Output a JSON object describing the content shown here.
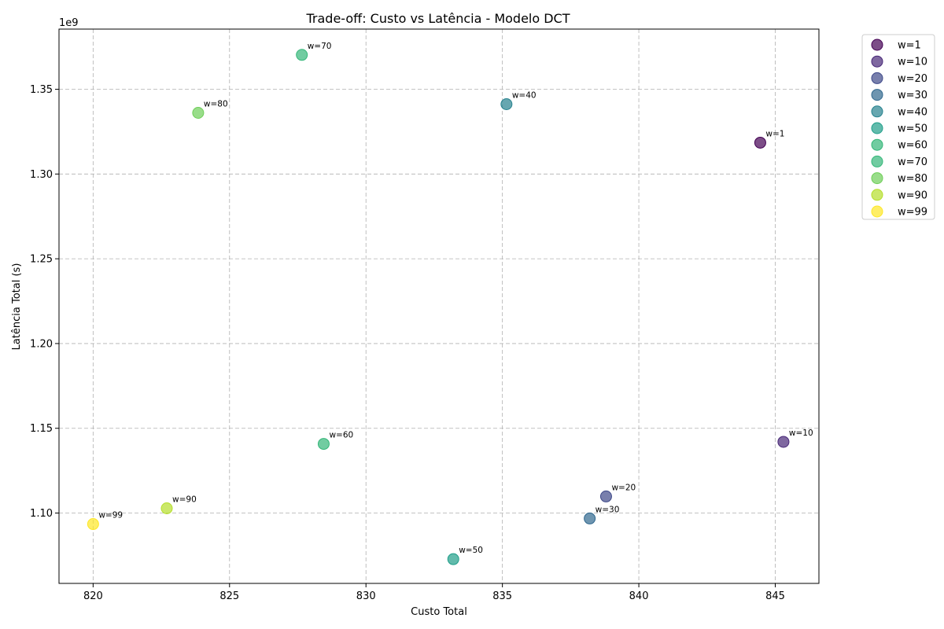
{
  "chart_data": {
    "type": "scatter",
    "title": "Trade-off: Custo vs Latência - Modelo DCT",
    "xlabel": "Custo Total",
    "ylabel": "Latência Total (s)",
    "y_offset_label": "1e9",
    "xlim": [
      818.75,
      846.6
    ],
    "ylim": [
      1.0585,
      1.3855
    ],
    "x_ticks": [
      820,
      825,
      830,
      835,
      840,
      845
    ],
    "x_tick_labels": [
      "820",
      "825",
      "830",
      "835",
      "840",
      "845"
    ],
    "y_ticks": [
      1.1,
      1.15,
      1.2,
      1.25,
      1.3,
      1.35
    ],
    "y_tick_labels": [
      "1.10",
      "1.15",
      "1.20",
      "1.25",
      "1.30",
      "1.35"
    ],
    "grid": true,
    "legend_position": "outside-right-top",
    "colormap": "viridis",
    "series": [
      {
        "name": "w=1",
        "x": 844.45,
        "y": 1.3185,
        "color": "#440154"
      },
      {
        "name": "w=10",
        "x": 845.3,
        "y": 1.142,
        "color": "#482878"
      },
      {
        "name": "w=20",
        "x": 838.8,
        "y": 1.1098,
        "color": "#3e4989"
      },
      {
        "name": "w=30",
        "x": 838.2,
        "y": 1.0968,
        "color": "#31688e"
      },
      {
        "name": "w=40",
        "x": 835.15,
        "y": 1.3412,
        "color": "#26828e"
      },
      {
        "name": "w=50",
        "x": 833.2,
        "y": 1.0728,
        "color": "#1f9e89"
      },
      {
        "name": "w=60",
        "x": 828.45,
        "y": 1.1408,
        "color": "#35b779"
      },
      {
        "name": "w=70",
        "x": 827.65,
        "y": 1.3703,
        "color": "#35b779"
      },
      {
        "name": "w=80",
        "x": 823.85,
        "y": 1.3361,
        "color": "#6ece58"
      },
      {
        "name": "w=90",
        "x": 822.7,
        "y": 1.1028,
        "color": "#b5de2b"
      },
      {
        "name": "w=99",
        "x": 820.0,
        "y": 1.0935,
        "color": "#fde725"
      }
    ]
  }
}
